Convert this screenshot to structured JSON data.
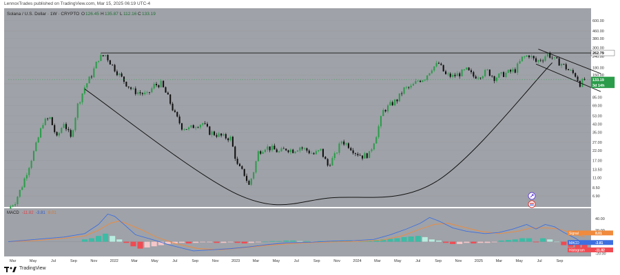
{
  "header": {
    "publisher_text": "LennoxTrades published on TradingView.com, Mar 15, 2025 06:19 UTC-4"
  },
  "footer": {
    "brand": "TradingView"
  },
  "colors": {
    "background": "#9fa2a8",
    "up": "#2b9c4a",
    "down": "#111111",
    "macd_line": "#3d6fe0",
    "signal_line": "#f08a3c",
    "hist_pos": "#3cbba5",
    "hist_pos_light": "#b8ece0",
    "hist_neg": "#f04a52",
    "hist_neg_light": "#f6c7c9",
    "price_badge": "#2b9c4a",
    "resistance_badge": "#ffffff",
    "grid": "#8f9298"
  },
  "chart_data": [
    {
      "type": "candlestick",
      "title": "Solana / U.S. Dollar · 1W · CRYPTO",
      "ohlc_readout": {
        "o_label": "O",
        "o": "126.45",
        "h_label": "H",
        "h": "135.87",
        "l_label": "L",
        "l": "112.16",
        "c_label": "C",
        "c": "133.19"
      },
      "y_scale": "log",
      "ylim": [
        5.5,
        620
      ],
      "y_ticks": [
        "600.00",
        "460.00",
        "380.00",
        "300.00",
        "240.00",
        "180.00",
        "150.00",
        "120.00",
        "85.00",
        "69.00",
        "53.00",
        "43.00",
        "35.00",
        "27.00",
        "22.00",
        "17.00",
        "13.50",
        "11.00",
        "8.50",
        "6.90"
      ],
      "x_ticks": [
        "Mar",
        "May",
        "Jul",
        "Sep",
        "Nov",
        "2022",
        "Mar",
        "May",
        "Jul",
        "Sep",
        "Nov",
        "2023",
        "Mar",
        "May",
        "Jul",
        "Sep",
        "Nov",
        "2024",
        "Mar",
        "May",
        "Jul",
        "Sep",
        "Nov",
        "2025",
        "Mar",
        "May",
        "Jul",
        "Sep"
      ],
      "x_range_weeks": [
        0,
        250
      ],
      "resistance": {
        "value": 262.79,
        "label": "262.79"
      },
      "last_price": {
        "value": 133.19,
        "label": "133.19",
        "countdown": "3d 14h"
      },
      "cup_curve": [
        [
          33,
          105
        ],
        [
          100,
          7
        ],
        [
          140,
          6.6
        ],
        [
          185,
          10
        ],
        [
          235,
          205
        ]
      ],
      "upper_wedge_line": [
        [
          229,
          290
        ],
        [
          250,
          145
        ]
      ],
      "lower_wedge_line": [
        [
          228,
          198
        ],
        [
          250,
          95
        ]
      ],
      "price_path": [
        [
          0,
          5
        ],
        [
          3,
          6
        ],
        [
          6,
          9
        ],
        [
          9,
          15
        ],
        [
          12,
          25
        ],
        [
          15,
          45
        ],
        [
          18,
          50
        ],
        [
          21,
          30
        ],
        [
          24,
          45
        ],
        [
          27,
          30
        ],
        [
          30,
          70
        ],
        [
          33,
          110
        ],
        [
          36,
          150
        ],
        [
          39,
          230
        ],
        [
          42,
          250
        ],
        [
          45,
          190
        ],
        [
          48,
          150
        ],
        [
          51,
          120
        ],
        [
          54,
          100
        ],
        [
          57,
          95
        ],
        [
          60,
          90
        ],
        [
          63,
          115
        ],
        [
          66,
          120
        ],
        [
          69,
          85
        ],
        [
          72,
          55
        ],
        [
          75,
          40
        ],
        [
          78,
          38
        ],
        [
          81,
          42
        ],
        [
          84,
          44
        ],
        [
          87,
          35
        ],
        [
          90,
          33
        ],
        [
          93,
          31
        ],
        [
          96,
          30
        ],
        [
          99,
          15
        ],
        [
          102,
          12
        ],
        [
          104,
          9
        ],
        [
          106,
          13
        ],
        [
          108,
          21
        ],
        [
          111,
          24
        ],
        [
          114,
          23
        ],
        [
          117,
          21
        ],
        [
          120,
          23
        ],
        [
          123,
          22
        ],
        [
          126,
          24
        ],
        [
          129,
          22
        ],
        [
          132,
          20
        ],
        [
          135,
          22
        ],
        [
          138,
          15
        ],
        [
          141,
          19
        ],
        [
          144,
          28
        ],
        [
          147,
          25
        ],
        [
          150,
          21
        ],
        [
          153,
          19
        ],
        [
          156,
          20
        ],
        [
          159,
          33
        ],
        [
          162,
          60
        ],
        [
          165,
          70
        ],
        [
          168,
          80
        ],
        [
          171,
          105
        ],
        [
          174,
          110
        ],
        [
          177,
          130
        ],
        [
          180,
          140
        ],
        [
          183,
          180
        ],
        [
          186,
          200
        ],
        [
          189,
          150
        ],
        [
          192,
          145
        ],
        [
          195,
          155
        ],
        [
          198,
          170
        ],
        [
          201,
          145
        ],
        [
          204,
          150
        ],
        [
          207,
          165
        ],
        [
          210,
          140
        ],
        [
          213,
          150
        ],
        [
          216,
          160
        ],
        [
          219,
          170
        ],
        [
          222,
          230
        ],
        [
          225,
          250
        ],
        [
          228,
          210
        ],
        [
          231,
          230
        ],
        [
          233,
          260
        ],
        [
          236,
          220
        ],
        [
          239,
          200
        ],
        [
          242,
          170
        ],
        [
          245,
          150
        ],
        [
          247,
          120
        ],
        [
          249,
          133
        ]
      ]
    },
    {
      "type": "macd",
      "label": "MACD",
      "params": "12 26 close 9",
      "readout": {
        "a": "-11.82",
        "b": "-3.81",
        "c": "8.01"
      },
      "ylim": [
        -22,
        52
      ],
      "y_ticks": [
        "40.00",
        "20.00",
        "-20.00"
      ],
      "badges": {
        "signal": {
          "label": "Signal",
          "value": "8.01"
        },
        "macd": {
          "label": "MACD",
          "value": "-3.81"
        },
        "histogram": {
          "label": "Histogram",
          "value": "-11.82"
        }
      },
      "macd_line": [
        [
          0,
          0
        ],
        [
          12,
          4
        ],
        [
          24,
          8
        ],
        [
          33,
          14
        ],
        [
          39,
          30
        ],
        [
          43,
          48
        ],
        [
          46,
          44
        ],
        [
          50,
          30
        ],
        [
          55,
          12
        ],
        [
          62,
          4
        ],
        [
          70,
          -6
        ],
        [
          80,
          -16
        ],
        [
          88,
          -14
        ],
        [
          96,
          -12
        ],
        [
          104,
          -9
        ],
        [
          112,
          -5
        ],
        [
          120,
          -2
        ],
        [
          130,
          -1
        ],
        [
          140,
          1
        ],
        [
          150,
          2
        ],
        [
          158,
          4
        ],
        [
          165,
          12
        ],
        [
          172,
          22
        ],
        [
          178,
          32
        ],
        [
          182,
          42
        ],
        [
          186,
          36
        ],
        [
          192,
          24
        ],
        [
          198,
          18
        ],
        [
          206,
          14
        ],
        [
          212,
          16
        ],
        [
          218,
          22
        ],
        [
          224,
          30
        ],
        [
          228,
          22
        ],
        [
          232,
          30
        ],
        [
          236,
          26
        ],
        [
          240,
          16
        ],
        [
          245,
          6
        ],
        [
          249,
          -4
        ]
      ],
      "signal_line": [
        [
          0,
          0
        ],
        [
          12,
          2
        ],
        [
          24,
          6
        ],
        [
          33,
          10
        ],
        [
          39,
          20
        ],
        [
          44,
          32
        ],
        [
          48,
          36
        ],
        [
          52,
          30
        ],
        [
          58,
          20
        ],
        [
          64,
          8
        ],
        [
          72,
          -3
        ],
        [
          82,
          -12
        ],
        [
          92,
          -14
        ],
        [
          100,
          -11
        ],
        [
          108,
          -8
        ],
        [
          116,
          -5
        ],
        [
          124,
          -3
        ],
        [
          134,
          -1
        ],
        [
          144,
          0
        ],
        [
          154,
          1
        ],
        [
          162,
          3
        ],
        [
          170,
          10
        ],
        [
          178,
          22
        ],
        [
          184,
          30
        ],
        [
          190,
          32
        ],
        [
          196,
          26
        ],
        [
          204,
          18
        ],
        [
          212,
          14
        ],
        [
          220,
          18
        ],
        [
          226,
          24
        ],
        [
          232,
          24
        ],
        [
          238,
          22
        ],
        [
          244,
          14
        ],
        [
          249,
          8
        ]
      ],
      "histogram": [
        [
          33,
          4
        ],
        [
          36,
          6
        ],
        [
          39,
          10
        ],
        [
          42,
          14
        ],
        [
          45,
          10
        ],
        [
          48,
          4
        ],
        [
          51,
          -2
        ],
        [
          54,
          -8
        ],
        [
          57,
          -12
        ],
        [
          60,
          -10
        ],
        [
          63,
          -8
        ],
        [
          66,
          -6
        ],
        [
          69,
          -4
        ],
        [
          72,
          -3
        ],
        [
          75,
          -2
        ],
        [
          78,
          -3
        ],
        [
          81,
          -2
        ],
        [
          84,
          -1
        ],
        [
          87,
          -1
        ],
        [
          90,
          -2
        ],
        [
          93,
          -2
        ],
        [
          96,
          -1
        ],
        [
          99,
          -2
        ],
        [
          102,
          -3
        ],
        [
          105,
          -2
        ],
        [
          108,
          -1
        ],
        [
          111,
          0
        ],
        [
          114,
          1
        ],
        [
          117,
          1
        ],
        [
          120,
          2
        ],
        [
          123,
          2
        ],
        [
          126,
          1
        ],
        [
          129,
          1
        ],
        [
          132,
          0
        ],
        [
          135,
          1
        ],
        [
          138,
          1
        ],
        [
          141,
          1
        ],
        [
          144,
          2
        ],
        [
          147,
          2
        ],
        [
          150,
          1
        ],
        [
          153,
          1
        ],
        [
          156,
          2
        ],
        [
          159,
          3
        ],
        [
          162,
          4
        ],
        [
          165,
          5
        ],
        [
          168,
          6
        ],
        [
          171,
          8
        ],
        [
          174,
          9
        ],
        [
          177,
          10
        ],
        [
          180,
          8
        ],
        [
          183,
          4
        ],
        [
          186,
          2
        ],
        [
          189,
          -2
        ],
        [
          192,
          -4
        ],
        [
          195,
          -4
        ],
        [
          198,
          -2
        ],
        [
          201,
          -3
        ],
        [
          204,
          -2
        ],
        [
          207,
          -2
        ],
        [
          210,
          -1
        ],
        [
          213,
          2
        ],
        [
          216,
          3
        ],
        [
          219,
          4
        ],
        [
          222,
          6
        ],
        [
          225,
          6
        ],
        [
          228,
          -1
        ],
        [
          231,
          6
        ],
        [
          234,
          4
        ],
        [
          237,
          0
        ],
        [
          240,
          -6
        ],
        [
          243,
          -9
        ],
        [
          246,
          -10
        ],
        [
          249,
          -12
        ]
      ]
    }
  ]
}
